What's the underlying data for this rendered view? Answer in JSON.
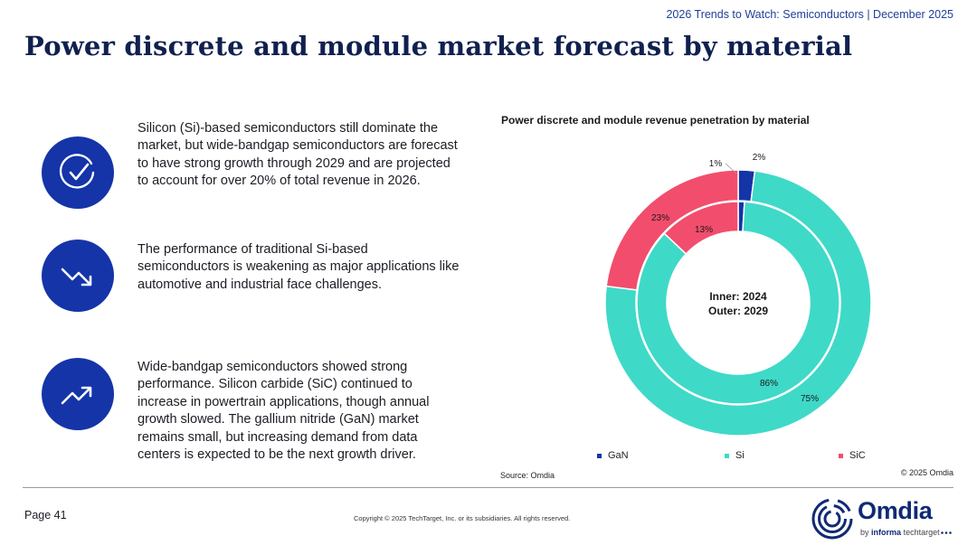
{
  "header": {
    "caption": "2026 Trends to Watch: Semiconductors | December 2025"
  },
  "page_title": "Power discrete and module market forecast by material",
  "points": [
    {
      "icon": "check-circle-icon",
      "text": "Silicon (Si)-based semiconductors still dominate the market, but wide-bandgap semiconductors are forecast to have strong growth through 2029 and are projected to account for over 20% of total revenue in 2026."
    },
    {
      "icon": "trend-down-icon",
      "text": "The performance of traditional Si-based semiconductors is weakening as major applications like automotive and industrial face challenges."
    },
    {
      "icon": "trend-up-icon",
      "text": "Wide-bandgap semiconductors showed strong performance. Silicon carbide (SiC) continued to increase in powertrain applications, though annual growth slowed. The gallium nitride (GaN) market remains small, but increasing demand from data centers is expected to be the next growth driver."
    }
  ],
  "chart_data": {
    "type": "pie",
    "title": "Power discrete and module revenue penetration by material",
    "center_label": [
      "Inner: 2024",
      "Outer: 2029"
    ],
    "categories": [
      "GaN",
      "Si",
      "SiC"
    ],
    "colors": [
      "#1434a8",
      "#3fd9c8",
      "#f24d6c"
    ],
    "series": [
      {
        "name": "Inner: 2024",
        "values": [
          1,
          86,
          13
        ],
        "labels": [
          "1%",
          "86%",
          "13%"
        ]
      },
      {
        "name": "Outer: 2029",
        "values": [
          2,
          75,
          23
        ],
        "labels": [
          "2%",
          "75%",
          "23%"
        ]
      }
    ],
    "legend": "bottom",
    "source": "Source: Omdia",
    "copyright": "© 2025 Omdia"
  },
  "footer": {
    "page": "Page 41",
    "copyright": "Copyright © 2025 TechTarget, Inc. or its subsidiaries. All rights reserved.",
    "logo_word": "Omdia",
    "logo_by": "by",
    "logo_informa": "informa",
    "logo_techtarget": "techtarget"
  }
}
